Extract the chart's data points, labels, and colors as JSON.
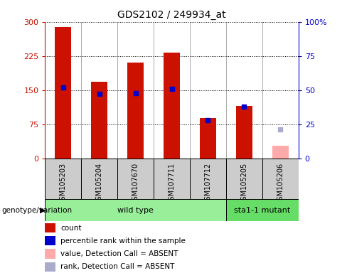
{
  "title": "GDS2102 / 249934_at",
  "sample_labels": [
    "GSM105203",
    "GSM105204",
    "GSM107670",
    "GSM107711",
    "GSM107712",
    "GSM105205",
    "GSM105206"
  ],
  "count_values": [
    288,
    168,
    210,
    232,
    88,
    115,
    28
  ],
  "rank_values": [
    52,
    47,
    48,
    51,
    28,
    38,
    21
  ],
  "absent": [
    false,
    false,
    false,
    false,
    false,
    false,
    true
  ],
  "genotype_labels": [
    "wild type",
    "sta1-1 mutant"
  ],
  "wt_count": 5,
  "left_ylim": [
    0,
    300
  ],
  "right_ylim": [
    0,
    100
  ],
  "left_yticks": [
    0,
    75,
    150,
    225,
    300
  ],
  "right_yticks": [
    0,
    25,
    50,
    75,
    100
  ],
  "bar_color_present": "#cc1100",
  "bar_color_absent": "#ffaaaa",
  "rank_color_present": "#0000cc",
  "rank_color_absent": "#aaaacc",
  "bar_width": 0.45,
  "wt_color": "#99ee99",
  "mut_color": "#66dd66",
  "tick_bg_color": "#cccccc",
  "legend_items": [
    {
      "label": "count",
      "color": "#cc1100"
    },
    {
      "label": "percentile rank within the sample",
      "color": "#0000cc"
    },
    {
      "label": "value, Detection Call = ABSENT",
      "color": "#ffaaaa"
    },
    {
      "label": "rank, Detection Call = ABSENT",
      "color": "#aaaacc"
    }
  ]
}
